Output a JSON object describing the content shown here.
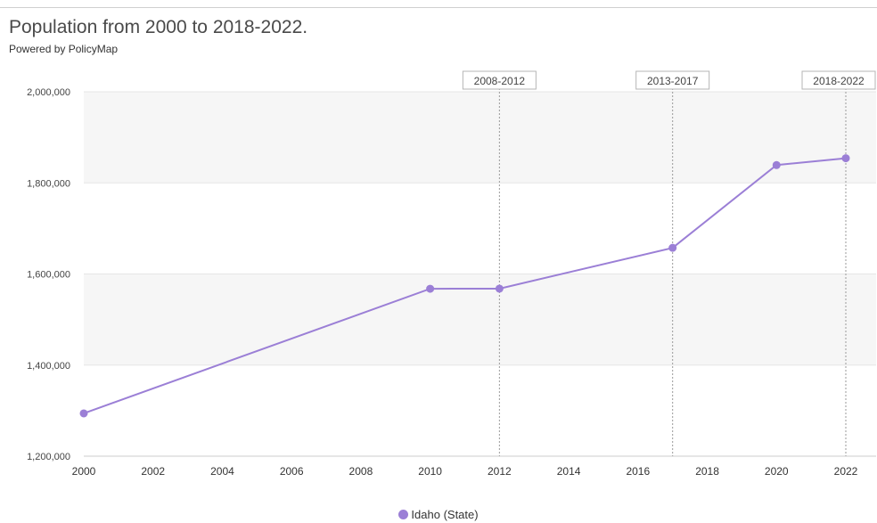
{
  "header": {
    "title": "Population from 2000 to 2018-2022.",
    "subtitle": "Powered by PolicyMap"
  },
  "colors": {
    "series": "#9b7fd6",
    "band": "#f6f6f6",
    "grid": "#e6e6e6",
    "marker_line": "#9a9a9a"
  },
  "chart_data": {
    "type": "line",
    "xlim": [
      2000,
      2022
    ],
    "ylim": [
      1200000,
      2000000
    ],
    "x_ticks": [
      2000,
      2002,
      2004,
      2006,
      2008,
      2010,
      2012,
      2014,
      2016,
      2018,
      2020,
      2022
    ],
    "y_ticks": [
      1200000,
      1400000,
      1600000,
      1800000,
      2000000
    ],
    "y_tick_labels": [
      "1,200,000",
      "1,400,000",
      "1,600,000",
      "1,800,000",
      "2,000,000"
    ],
    "shaded_bands": [
      [
        1400000,
        1600000
      ],
      [
        1800000,
        2000000
      ]
    ],
    "series": [
      {
        "name": "Idaho (State)",
        "x": [
          2000,
          2010,
          2012,
          2017,
          2020,
          2022
        ],
        "y": [
          1293953,
          1567582,
          1567803,
          1657375,
          1839106,
          1854109
        ]
      }
    ],
    "period_markers": [
      {
        "x": 2012,
        "label": "2008-2012"
      },
      {
        "x": 2017,
        "label": "2013-2017"
      },
      {
        "x": 2022,
        "label": "2018-2022"
      }
    ],
    "legend_position": "bottom-center"
  }
}
